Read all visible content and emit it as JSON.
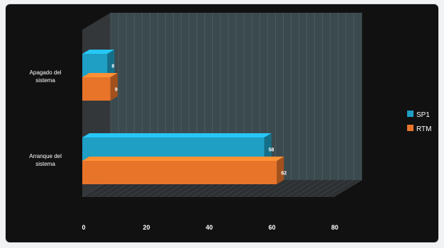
{
  "chart_data": {
    "type": "bar",
    "orientation": "horizontal",
    "three_d": true,
    "categories": [
      "Apagado del sistema",
      "Arranque del sistema"
    ],
    "category_labels": [
      [
        "Apagado del",
        "sistema"
      ],
      [
        "Arranque del",
        "sistema"
      ]
    ],
    "series": [
      {
        "name": "SP1",
        "values": [
          8,
          58
        ],
        "color": "#1f9fc4"
      },
      {
        "name": "RTM",
        "values": [
          9,
          62
        ],
        "color": "#e8742a"
      }
    ],
    "xlim": [
      0,
      80
    ],
    "xticks": [
      0,
      20,
      40,
      60,
      80
    ],
    "grid": true,
    "legend": "right",
    "background": "#111111",
    "wall_color": "#3b4a4e"
  }
}
